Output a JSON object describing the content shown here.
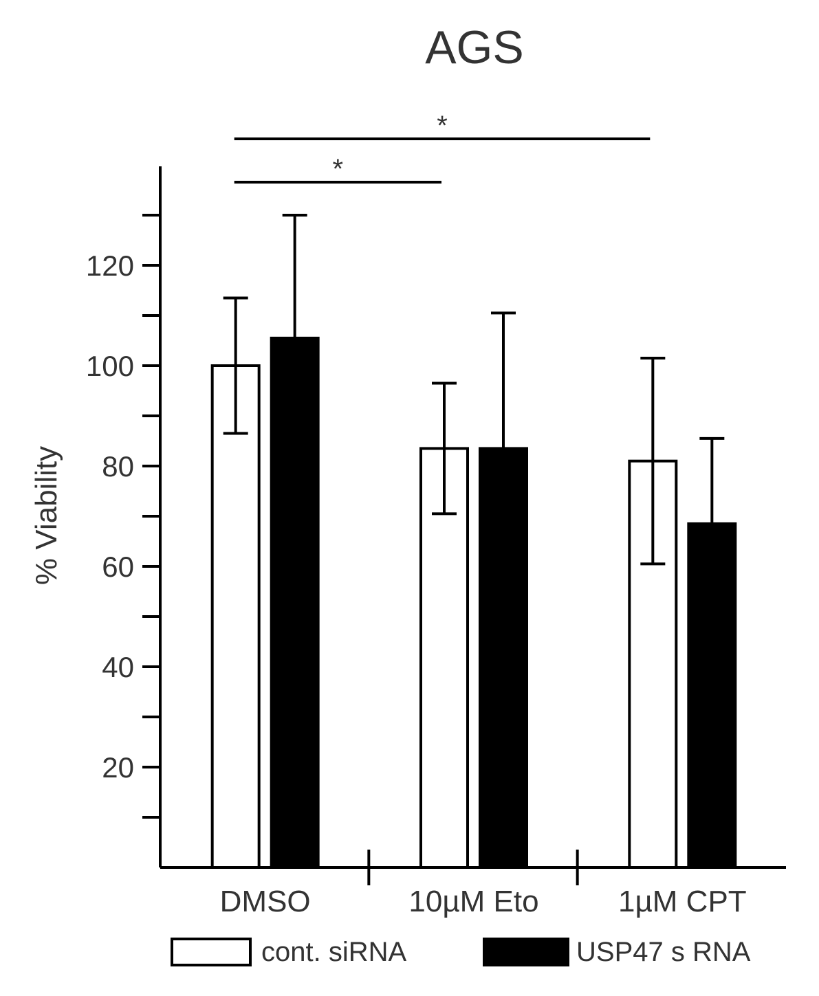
{
  "chart_data": {
    "type": "bar",
    "title": "AGS",
    "ylabel": "% Viability",
    "xlabel": "",
    "categories": [
      "DMSO",
      "10µM Eto",
      "1µM CPT"
    ],
    "ylim": [
      0,
      140
    ],
    "yticks_labeled": [
      20,
      40,
      60,
      80,
      100,
      120
    ],
    "yticks_all": [
      10,
      20,
      30,
      40,
      50,
      60,
      70,
      80,
      90,
      100,
      110,
      120,
      130
    ],
    "series": [
      {
        "name": "cont. siRNA",
        "fill": "#ffffff",
        "values": [
          100,
          83.5,
          81
        ],
        "errors": [
          13.5,
          13,
          20.5
        ]
      },
      {
        "name": "USP47 s RNA",
        "fill": "#000000",
        "values": [
          105.5,
          83.5,
          68.5
        ],
        "errors": [
          24.5,
          27,
          17
        ]
      }
    ],
    "significance": [
      {
        "label": "*",
        "from_category": 0,
        "to_category": 1
      },
      {
        "label": "*",
        "from_category": 0,
        "to_category": 2
      }
    ],
    "legend_position": "bottom",
    "grid": false
  }
}
